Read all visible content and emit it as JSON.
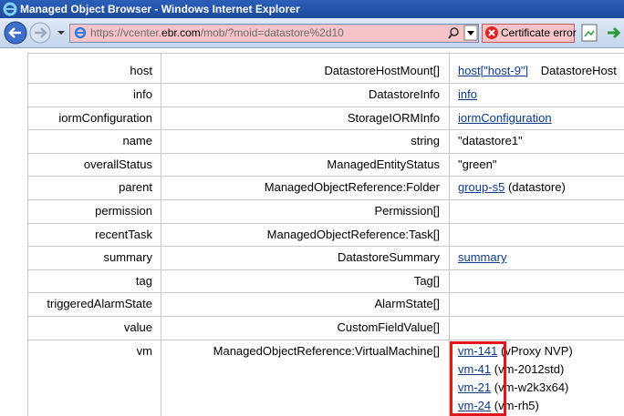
{
  "window": {
    "title": "Managed Object Browser - Windows Internet Explorer",
    "url_scheme": "https://vcenter.",
    "url_domain": "ebr.com",
    "url_path": "/mob/?moid=datastore%2d10",
    "certificate": "Certificate error"
  },
  "table": {
    "rows": [
      {
        "name": "host",
        "type": "DatastoreHostMount[]",
        "value": [
          {
            "link": "host[\"host-9\"]",
            "text": "DatastoreHost"
          }
        ]
      },
      {
        "name": "info",
        "type": "DatastoreInfo",
        "value": [
          {
            "link": "info"
          }
        ]
      },
      {
        "name": "iormConfiguration",
        "type": "StorageIORMInfo",
        "value": [
          {
            "link": "iormConfiguration"
          }
        ]
      },
      {
        "name": "name",
        "type": "string",
        "value": [
          {
            "text": "\"datastore1\""
          }
        ]
      },
      {
        "name": "overallStatus",
        "type": "ManagedEntityStatus",
        "value": [
          {
            "text": "\"green\""
          }
        ]
      },
      {
        "name": "parent",
        "type": "ManagedObjectReference:Folder",
        "value": [
          {
            "link": "group-s5",
            "text": "(datastore)"
          }
        ]
      },
      {
        "name": "permission",
        "type": "Permission[]",
        "value": []
      },
      {
        "name": "recentTask",
        "type": "ManagedObjectReference:Task[]",
        "value": []
      },
      {
        "name": "summary",
        "type": "DatastoreSummary",
        "value": [
          {
            "link": "summary"
          }
        ]
      },
      {
        "name": "tag",
        "type": "Tag[]",
        "value": []
      },
      {
        "name": "triggeredAlarmState",
        "type": "AlarmState[]",
        "value": []
      },
      {
        "name": "value",
        "type": "CustomFieldValue[]",
        "value": []
      },
      {
        "name": "vm",
        "type": "ManagedObjectReference:VirtualMachine[]",
        "value": [
          {
            "link": "vm-141",
            "text": "(vProxy NVP)"
          },
          {
            "link": "vm-41",
            "text": "(vm-2012std)"
          },
          {
            "link": "vm-21",
            "text": "(vm-w2k3x64)"
          },
          {
            "link": "vm-24",
            "text": "(vm-rh5)"
          }
        ]
      }
    ]
  }
}
